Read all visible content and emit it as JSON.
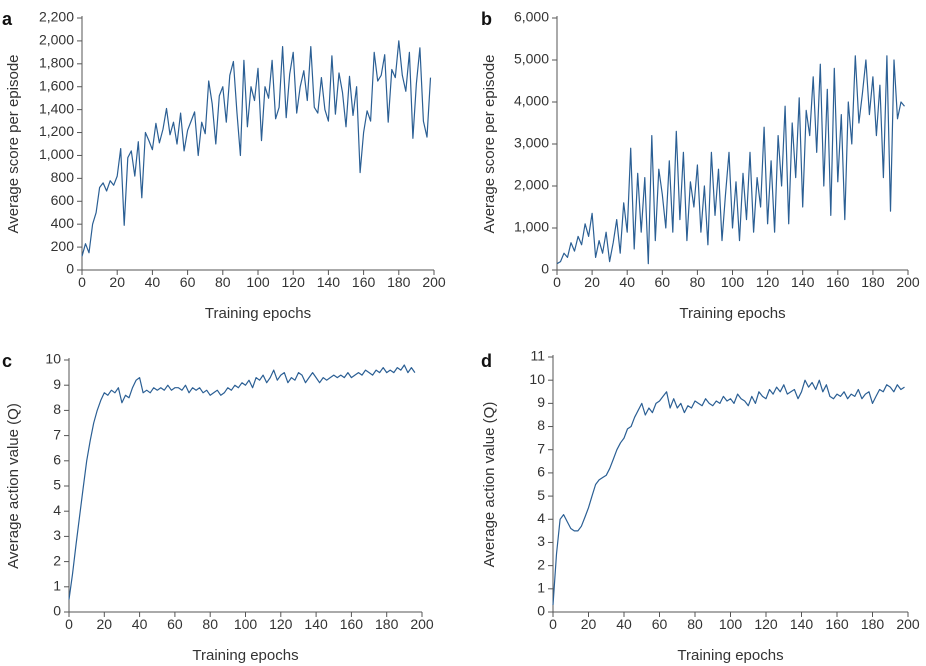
{
  "figure": {
    "panels": [
      "a",
      "b",
      "c",
      "d"
    ]
  },
  "chart_data": [
    {
      "panel": "a",
      "type": "line",
      "title": "",
      "xlabel": "Training epochs",
      "ylabel": "Average score per episode",
      "xlim": [
        0,
        200
      ],
      "ylim": [
        0,
        2200
      ],
      "xticks": [
        0,
        20,
        40,
        60,
        80,
        100,
        120,
        140,
        160,
        180,
        200
      ],
      "xtick_labels": [
        "0",
        "20",
        "40",
        "60",
        "80",
        "100",
        "120",
        "140",
        "160",
        "180",
        "200"
      ],
      "yticks": [
        0,
        200,
        400,
        600,
        800,
        1000,
        1200,
        1400,
        1600,
        1800,
        2000,
        2200
      ],
      "ytick_labels": [
        "0",
        "200",
        "400",
        "600",
        "800",
        "1,000",
        "1,200",
        "1,400",
        "1,600",
        "1,800",
        "2,000",
        "2,200"
      ],
      "series": [
        {
          "name": "Average score per episode",
          "x": [
            0,
            2,
            4,
            6,
            8,
            10,
            12,
            14,
            16,
            18,
            20,
            22,
            24,
            26,
            28,
            30,
            32,
            34,
            36,
            38,
            40,
            42,
            44,
            46,
            48,
            50,
            52,
            54,
            56,
            58,
            60,
            62,
            64,
            66,
            68,
            70,
            72,
            74,
            76,
            78,
            80,
            82,
            84,
            86,
            88,
            90,
            92,
            94,
            96,
            98,
            100,
            102,
            104,
            106,
            108,
            110,
            112,
            114,
            116,
            118,
            120,
            122,
            124,
            126,
            128,
            130,
            132,
            134,
            136,
            138,
            140,
            142,
            144,
            146,
            148,
            150,
            152,
            154,
            156,
            158,
            160,
            162,
            164,
            166,
            168,
            170,
            172,
            174,
            176,
            178,
            180,
            182,
            184,
            186,
            188,
            190,
            192,
            194,
            196,
            198
          ],
          "values": [
            120,
            230,
            150,
            400,
            500,
            720,
            760,
            690,
            780,
            740,
            820,
            1060,
            390,
            980,
            1040,
            820,
            1120,
            630,
            1200,
            1130,
            1050,
            1280,
            1110,
            1230,
            1410,
            1180,
            1290,
            1100,
            1370,
            1040,
            1220,
            1300,
            1380,
            1000,
            1290,
            1190,
            1650,
            1450,
            1100,
            1520,
            1600,
            1290,
            1700,
            1820,
            1380,
            1000,
            1830,
            1250,
            1600,
            1480,
            1760,
            1130,
            1600,
            1500,
            1830,
            1320,
            1420,
            1950,
            1330,
            1710,
            1900,
            1370,
            1600,
            1740,
            1480,
            1950,
            1420,
            1370,
            1680,
            1400,
            1300,
            1870,
            1360,
            1720,
            1550,
            1250,
            1690,
            1350,
            1600,
            850,
            1200,
            1390,
            1300,
            1900,
            1650,
            1700,
            1880,
            1290,
            1750,
            1680,
            2000,
            1700,
            1560,
            1900,
            1150,
            1630,
            1940,
            1300,
            1160,
            1680
          ]
        }
      ]
    },
    {
      "panel": "b",
      "type": "line",
      "title": "",
      "xlabel": "Training epochs",
      "ylabel": "Average score per episode",
      "xlim": [
        0,
        200
      ],
      "ylim": [
        0,
        6000
      ],
      "xticks": [
        0,
        20,
        40,
        60,
        80,
        100,
        120,
        140,
        160,
        180,
        200
      ],
      "xtick_labels": [
        "0",
        "20",
        "40",
        "60",
        "80",
        "100",
        "120",
        "140",
        "160",
        "180",
        "200"
      ],
      "yticks": [
        0,
        1000,
        2000,
        3000,
        4000,
        5000,
        6000
      ],
      "ytick_labels": [
        "0",
        "1,000",
        "2,000",
        "3,000",
        "4,000",
        "5,000",
        "6,000"
      ],
      "series": [
        {
          "name": "Average score per episode",
          "x": [
            0,
            2,
            4,
            6,
            8,
            10,
            12,
            14,
            16,
            18,
            20,
            22,
            24,
            26,
            28,
            30,
            32,
            34,
            36,
            38,
            40,
            42,
            44,
            46,
            48,
            50,
            52,
            54,
            56,
            58,
            60,
            62,
            64,
            66,
            68,
            70,
            72,
            74,
            76,
            78,
            80,
            82,
            84,
            86,
            88,
            90,
            92,
            94,
            96,
            98,
            100,
            102,
            104,
            106,
            108,
            110,
            112,
            114,
            116,
            118,
            120,
            122,
            124,
            126,
            128,
            130,
            132,
            134,
            136,
            138,
            140,
            142,
            144,
            146,
            148,
            150,
            152,
            154,
            156,
            158,
            160,
            162,
            164,
            166,
            168,
            170,
            172,
            174,
            176,
            178,
            180,
            182,
            184,
            186,
            188,
            190,
            192,
            194,
            196,
            198
          ],
          "values": [
            150,
            200,
            400,
            300,
            650,
            450,
            800,
            600,
            1100,
            800,
            1350,
            300,
            700,
            400,
            900,
            200,
            650,
            1200,
            400,
            1600,
            900,
            2900,
            500,
            2300,
            900,
            2200,
            150,
            3200,
            700,
            2400,
            1800,
            1000,
            2600,
            900,
            3300,
            1200,
            2800,
            700,
            2100,
            1500,
            2500,
            900,
            2000,
            600,
            2800,
            1300,
            2400,
            700,
            1800,
            2800,
            1000,
            2100,
            700,
            2300,
            1200,
            2800,
            900,
            2200,
            1500,
            3400,
            1100,
            2600,
            900,
            3200,
            2000,
            3900,
            1100,
            3500,
            2200,
            4100,
            1500,
            3800,
            3200,
            4600,
            2800,
            4900,
            2000,
            4300,
            1300,
            4800,
            2100,
            3700,
            1200,
            4000,
            3000,
            5100,
            3500,
            4200,
            5000,
            3700,
            4600,
            3200,
            4400,
            2200,
            5100,
            1400,
            5000,
            3600,
            4000,
            3900
          ]
        }
      ]
    },
    {
      "panel": "c",
      "type": "line",
      "title": "",
      "xlabel": "Training epochs",
      "ylabel": "Average action value (Q)",
      "xlim": [
        0,
        200
      ],
      "ylim": [
        0,
        10
      ],
      "xticks": [
        0,
        20,
        40,
        60,
        80,
        100,
        120,
        140,
        160,
        180,
        200
      ],
      "xtick_labels": [
        "0",
        "20",
        "40",
        "60",
        "80",
        "100",
        "120",
        "140",
        "160",
        "180",
        "200"
      ],
      "yticks": [
        0,
        1,
        2,
        3,
        4,
        5,
        6,
        7,
        8,
        9,
        10
      ],
      "ytick_labels": [
        "0",
        "1",
        "2",
        "3",
        "4",
        "5",
        "6",
        "7",
        "8",
        "9",
        "10"
      ],
      "series": [
        {
          "name": "Average action value (Q)",
          "x": [
            0,
            2,
            4,
            6,
            8,
            10,
            12,
            14,
            16,
            18,
            20,
            22,
            24,
            26,
            28,
            30,
            32,
            34,
            36,
            38,
            40,
            42,
            44,
            46,
            48,
            50,
            52,
            54,
            56,
            58,
            60,
            62,
            64,
            66,
            68,
            70,
            72,
            74,
            76,
            78,
            80,
            82,
            84,
            86,
            88,
            90,
            92,
            94,
            96,
            98,
            100,
            102,
            104,
            106,
            108,
            110,
            112,
            114,
            116,
            118,
            120,
            122,
            124,
            126,
            128,
            130,
            132,
            134,
            136,
            138,
            140,
            142,
            144,
            146,
            148,
            150,
            152,
            154,
            156,
            158,
            160,
            162,
            164,
            166,
            168,
            170,
            172,
            174,
            176,
            178,
            180,
            182,
            184,
            186,
            188,
            190,
            192,
            194,
            196
          ],
          "values": [
            0.5,
            1.5,
            2.7,
            3.8,
            4.9,
            6.0,
            6.8,
            7.5,
            8.0,
            8.4,
            8.7,
            8.6,
            8.8,
            8.7,
            8.9,
            8.3,
            8.6,
            8.5,
            8.9,
            9.2,
            9.3,
            8.7,
            8.8,
            8.7,
            8.9,
            8.8,
            8.9,
            8.8,
            9.0,
            8.8,
            8.9,
            8.9,
            8.8,
            9.0,
            8.7,
            8.9,
            8.8,
            8.9,
            8.7,
            8.8,
            8.6,
            8.7,
            8.8,
            8.6,
            8.7,
            8.9,
            8.8,
            9.0,
            8.9,
            9.1,
            9.0,
            9.2,
            8.9,
            9.3,
            9.2,
            9.4,
            9.1,
            9.3,
            9.6,
            9.2,
            9.4,
            9.5,
            9.1,
            9.3,
            9.2,
            9.5,
            9.4,
            9.1,
            9.3,
            9.5,
            9.3,
            9.1,
            9.3,
            9.2,
            9.3,
            9.4,
            9.3,
            9.4,
            9.3,
            9.5,
            9.3,
            9.4,
            9.5,
            9.4,
            9.6,
            9.5,
            9.4,
            9.6,
            9.5,
            9.7,
            9.5,
            9.6,
            9.5,
            9.7,
            9.6,
            9.8,
            9.5,
            9.7,
            9.5
          ]
        }
      ]
    },
    {
      "panel": "d",
      "type": "line",
      "title": "",
      "xlabel": "Training epochs",
      "ylabel": "Average action value (Q)",
      "xlim": [
        0,
        200
      ],
      "ylim": [
        0,
        11
      ],
      "xticks": [
        0,
        20,
        40,
        60,
        80,
        100,
        120,
        140,
        160,
        180,
        200
      ],
      "xtick_labels": [
        "0",
        "20",
        "40",
        "60",
        "80",
        "100",
        "120",
        "140",
        "160",
        "180",
        "200"
      ],
      "yticks": [
        0,
        1,
        2,
        3,
        4,
        5,
        6,
        7,
        8,
        9,
        10,
        11
      ],
      "ytick_labels": [
        "0",
        "1",
        "2",
        "3",
        "4",
        "5",
        "6",
        "7",
        "8",
        "9",
        "10",
        "11"
      ],
      "series": [
        {
          "name": "Average action value (Q)",
          "x": [
            0,
            2,
            4,
            6,
            8,
            10,
            12,
            14,
            16,
            18,
            20,
            22,
            24,
            26,
            28,
            30,
            32,
            34,
            36,
            38,
            40,
            42,
            44,
            46,
            48,
            50,
            52,
            54,
            56,
            58,
            60,
            62,
            64,
            66,
            68,
            70,
            72,
            74,
            76,
            78,
            80,
            82,
            84,
            86,
            88,
            90,
            92,
            94,
            96,
            98,
            100,
            102,
            104,
            106,
            108,
            110,
            112,
            114,
            116,
            118,
            120,
            122,
            124,
            126,
            128,
            130,
            132,
            134,
            136,
            138,
            140,
            142,
            144,
            146,
            148,
            150,
            152,
            154,
            156,
            158,
            160,
            162,
            164,
            166,
            168,
            170,
            172,
            174,
            176,
            178,
            180,
            182,
            184,
            186,
            188,
            190,
            192,
            194,
            196,
            198
          ],
          "values": [
            0.3,
            2.5,
            4.0,
            4.2,
            3.9,
            3.6,
            3.5,
            3.5,
            3.7,
            4.1,
            4.5,
            5.0,
            5.5,
            5.7,
            5.8,
            5.9,
            6.2,
            6.6,
            7.0,
            7.3,
            7.5,
            7.9,
            8.0,
            8.4,
            8.7,
            9.0,
            8.5,
            8.8,
            8.6,
            9.0,
            9.1,
            9.3,
            9.5,
            8.8,
            9.2,
            8.8,
            9.0,
            8.6,
            8.9,
            8.8,
            9.1,
            9.0,
            8.9,
            9.2,
            9.0,
            8.9,
            9.1,
            9.0,
            9.3,
            9.1,
            9.2,
            9.0,
            9.4,
            9.2,
            9.1,
            8.9,
            9.3,
            9.0,
            9.5,
            9.3,
            9.2,
            9.6,
            9.4,
            9.7,
            9.5,
            9.8,
            9.4,
            9.5,
            9.6,
            9.2,
            9.5,
            10.0,
            9.7,
            9.9,
            9.6,
            10.0,
            9.5,
            9.8,
            9.3,
            9.2,
            9.4,
            9.3,
            9.5,
            9.2,
            9.4,
            9.3,
            9.6,
            9.2,
            9.4,
            9.5,
            9.0,
            9.3,
            9.6,
            9.5,
            9.8,
            9.7,
            9.5,
            9.8,
            9.6,
            9.7
          ]
        }
      ]
    }
  ]
}
